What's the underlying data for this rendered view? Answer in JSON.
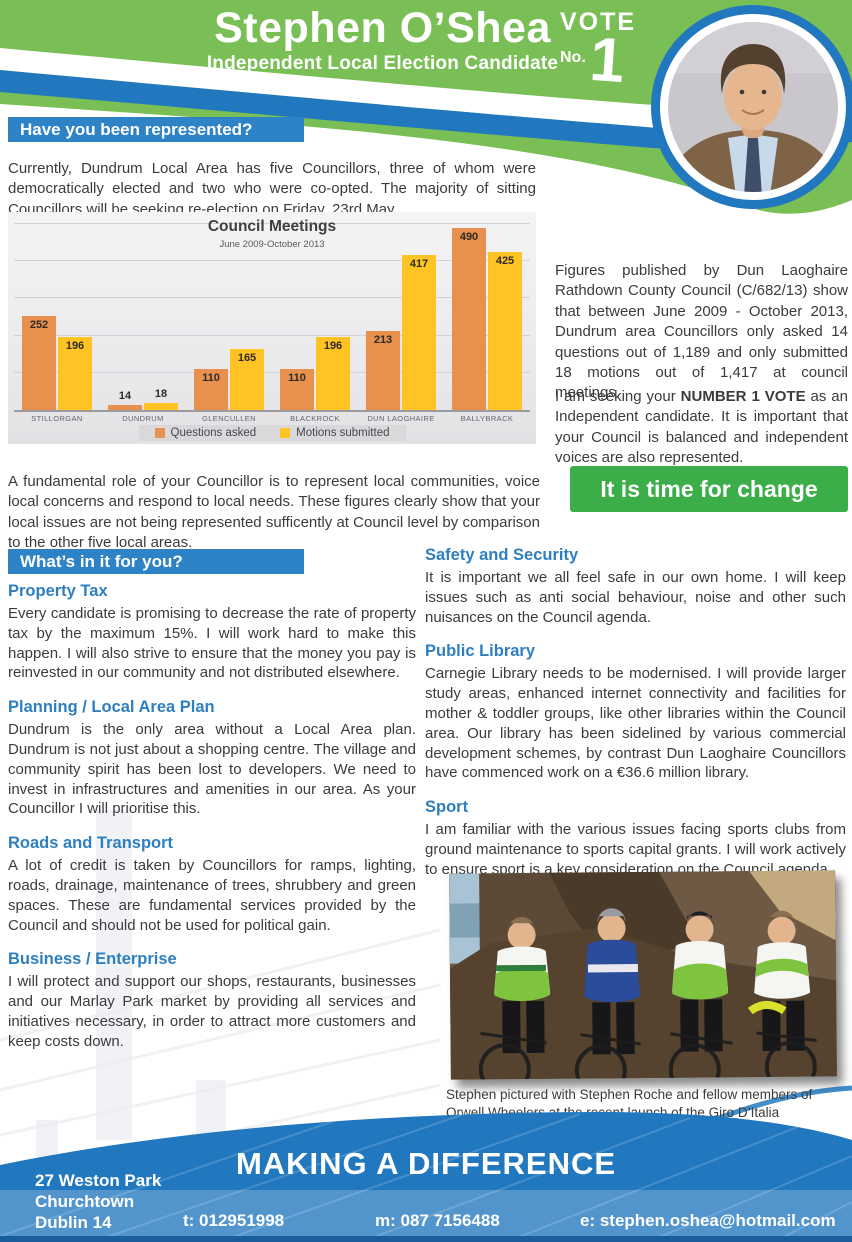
{
  "header": {
    "title": "Stephen O’Shea",
    "subtitle": "Independent Local Election Candidate",
    "vote_label": "VOTE",
    "vote_no_label": "No.",
    "vote_number": "1"
  },
  "colors": {
    "header_green": "#7abf55",
    "wave_blue": "#2278bf",
    "section_bar_blue": "#2e83c6",
    "heading_text_blue": "#2e7fc0",
    "cta_green": "#3bae49",
    "bar_orange": "#e8914e",
    "bar_yellow": "#ffc423"
  },
  "section_represented": {
    "heading": "Have you been represented?",
    "intro": "Currently, Dundrum Local Area has five Councillors, three of whom were democratically elected and two who were co-opted.  The majority of sitting Councillors will be seeking re-election on Friday, 23rd May.",
    "summary": "A fundamental role of your Councillor is to represent local communities, voice local concerns and respond to local needs. These figures clearly show that your local issues are not being represented sufficently at Council level by comparison to the other five local areas."
  },
  "chart_data": {
    "type": "bar",
    "title": "Council Meetings",
    "subtitle": "June 2009-October 2013",
    "categories": [
      "STILLORGAN",
      "DUNDRUM",
      "GLENCULLEN",
      "BLACKROCK",
      "DUN LAOGHAIRE",
      "BALLYBRACK"
    ],
    "series": [
      {
        "name": "Questions asked",
        "color": "#e8914e",
        "values": [
          252,
          14,
          110,
          110,
          213,
          490
        ]
      },
      {
        "name": "Motions submitted",
        "color": "#ffc423",
        "values": [
          196,
          18,
          165,
          196,
          417,
          425
        ]
      }
    ],
    "ylim": [
      0,
      500
    ],
    "gridline_step": 100,
    "grid": true,
    "legend_position": "bottom"
  },
  "aside": {
    "para1": "Figures published by Dun Laoghaire Rathdown County Council (C/682/13) show that between June 2009 - October 2013, Dundrum area Councillors only asked 14 questions out of 1,189 and only submitted 18 motions out of 1,417 at council meetings.",
    "para2_before": "I am seeking your ",
    "para2_bold": "NUMBER 1 VOTE",
    "para2_after": " as an Independent candidate.  It is important that your Council is balanced and independent voices are also represented.",
    "cta_label": "It is time for change"
  },
  "section_for_you": {
    "heading": "What’s in it for you?"
  },
  "left_sections": [
    {
      "heading": "Property Tax",
      "body": "Every candidate is promising to decrease the rate of property tax by the maximum 15%.  I will work hard to make this happen.  I will also strive to ensure that the money you pay is reinvested in our community and not distributed elsewhere."
    },
    {
      "heading": "Planning / Local Area Plan",
      "body": "Dundrum is the only area without a Local Area plan. Dundrum is not just about a shopping centre.  The village and community spirit has been lost to developers.  We need to invest in infrastructures and amenities in our area.  As your Councillor I will prioritise this."
    },
    {
      "heading": "Roads and Transport",
      "body": "A lot of credit is taken by Councillors for ramps, lighting, roads, drainage, maintenance of trees, shrubbery and green spaces.  These are fundamental services provided by the Council and should not be used for political gain."
    },
    {
      "heading": "Business / Enterprise",
      "body": "I will protect and support our shops, restaurants, businesses and our Marlay Park market by providing all services and initiatives necessary, in order to attract more customers and keep costs down."
    }
  ],
  "right_sections": [
    {
      "heading": "Safety and Security",
      "body": "It is important we all feel safe in our own home. I will keep issues such as anti social behaviour, noise and other such nuisances on the Council agenda."
    },
    {
      "heading": "Public Library",
      "body": "Carnegie Library needs to be modernised.  I will provide larger study areas, enhanced internet connectivity and facilities for mother & toddler groups, like other libraries within the Council area.   Our library has been sidelined by various commercial development schemes, by contrast Dun Laoghaire Councillors have commenced work on a €36.6 million library."
    },
    {
      "heading": "Sport",
      "body": "I am familiar with the various issues facing sports clubs from ground maintenance to sports capital grants.  I will work actively to ensure sport is a key consideration on the Council agenda."
    }
  ],
  "photo_caption": "Stephen pictured with Stephen Roche and fellow members of Orwell Wheelers at the recent launch of the Giro D’Italia",
  "footer": {
    "slogan": "MAKING A DIFFERENCE",
    "address_lines": [
      "27 Weston Park",
      "Churchtown",
      "Dublin 14"
    ],
    "phone_label": "t: 012951998",
    "mobile_label": "m: 087 7156488",
    "email_label": "e: stephen.oshea@hotmail.com"
  }
}
